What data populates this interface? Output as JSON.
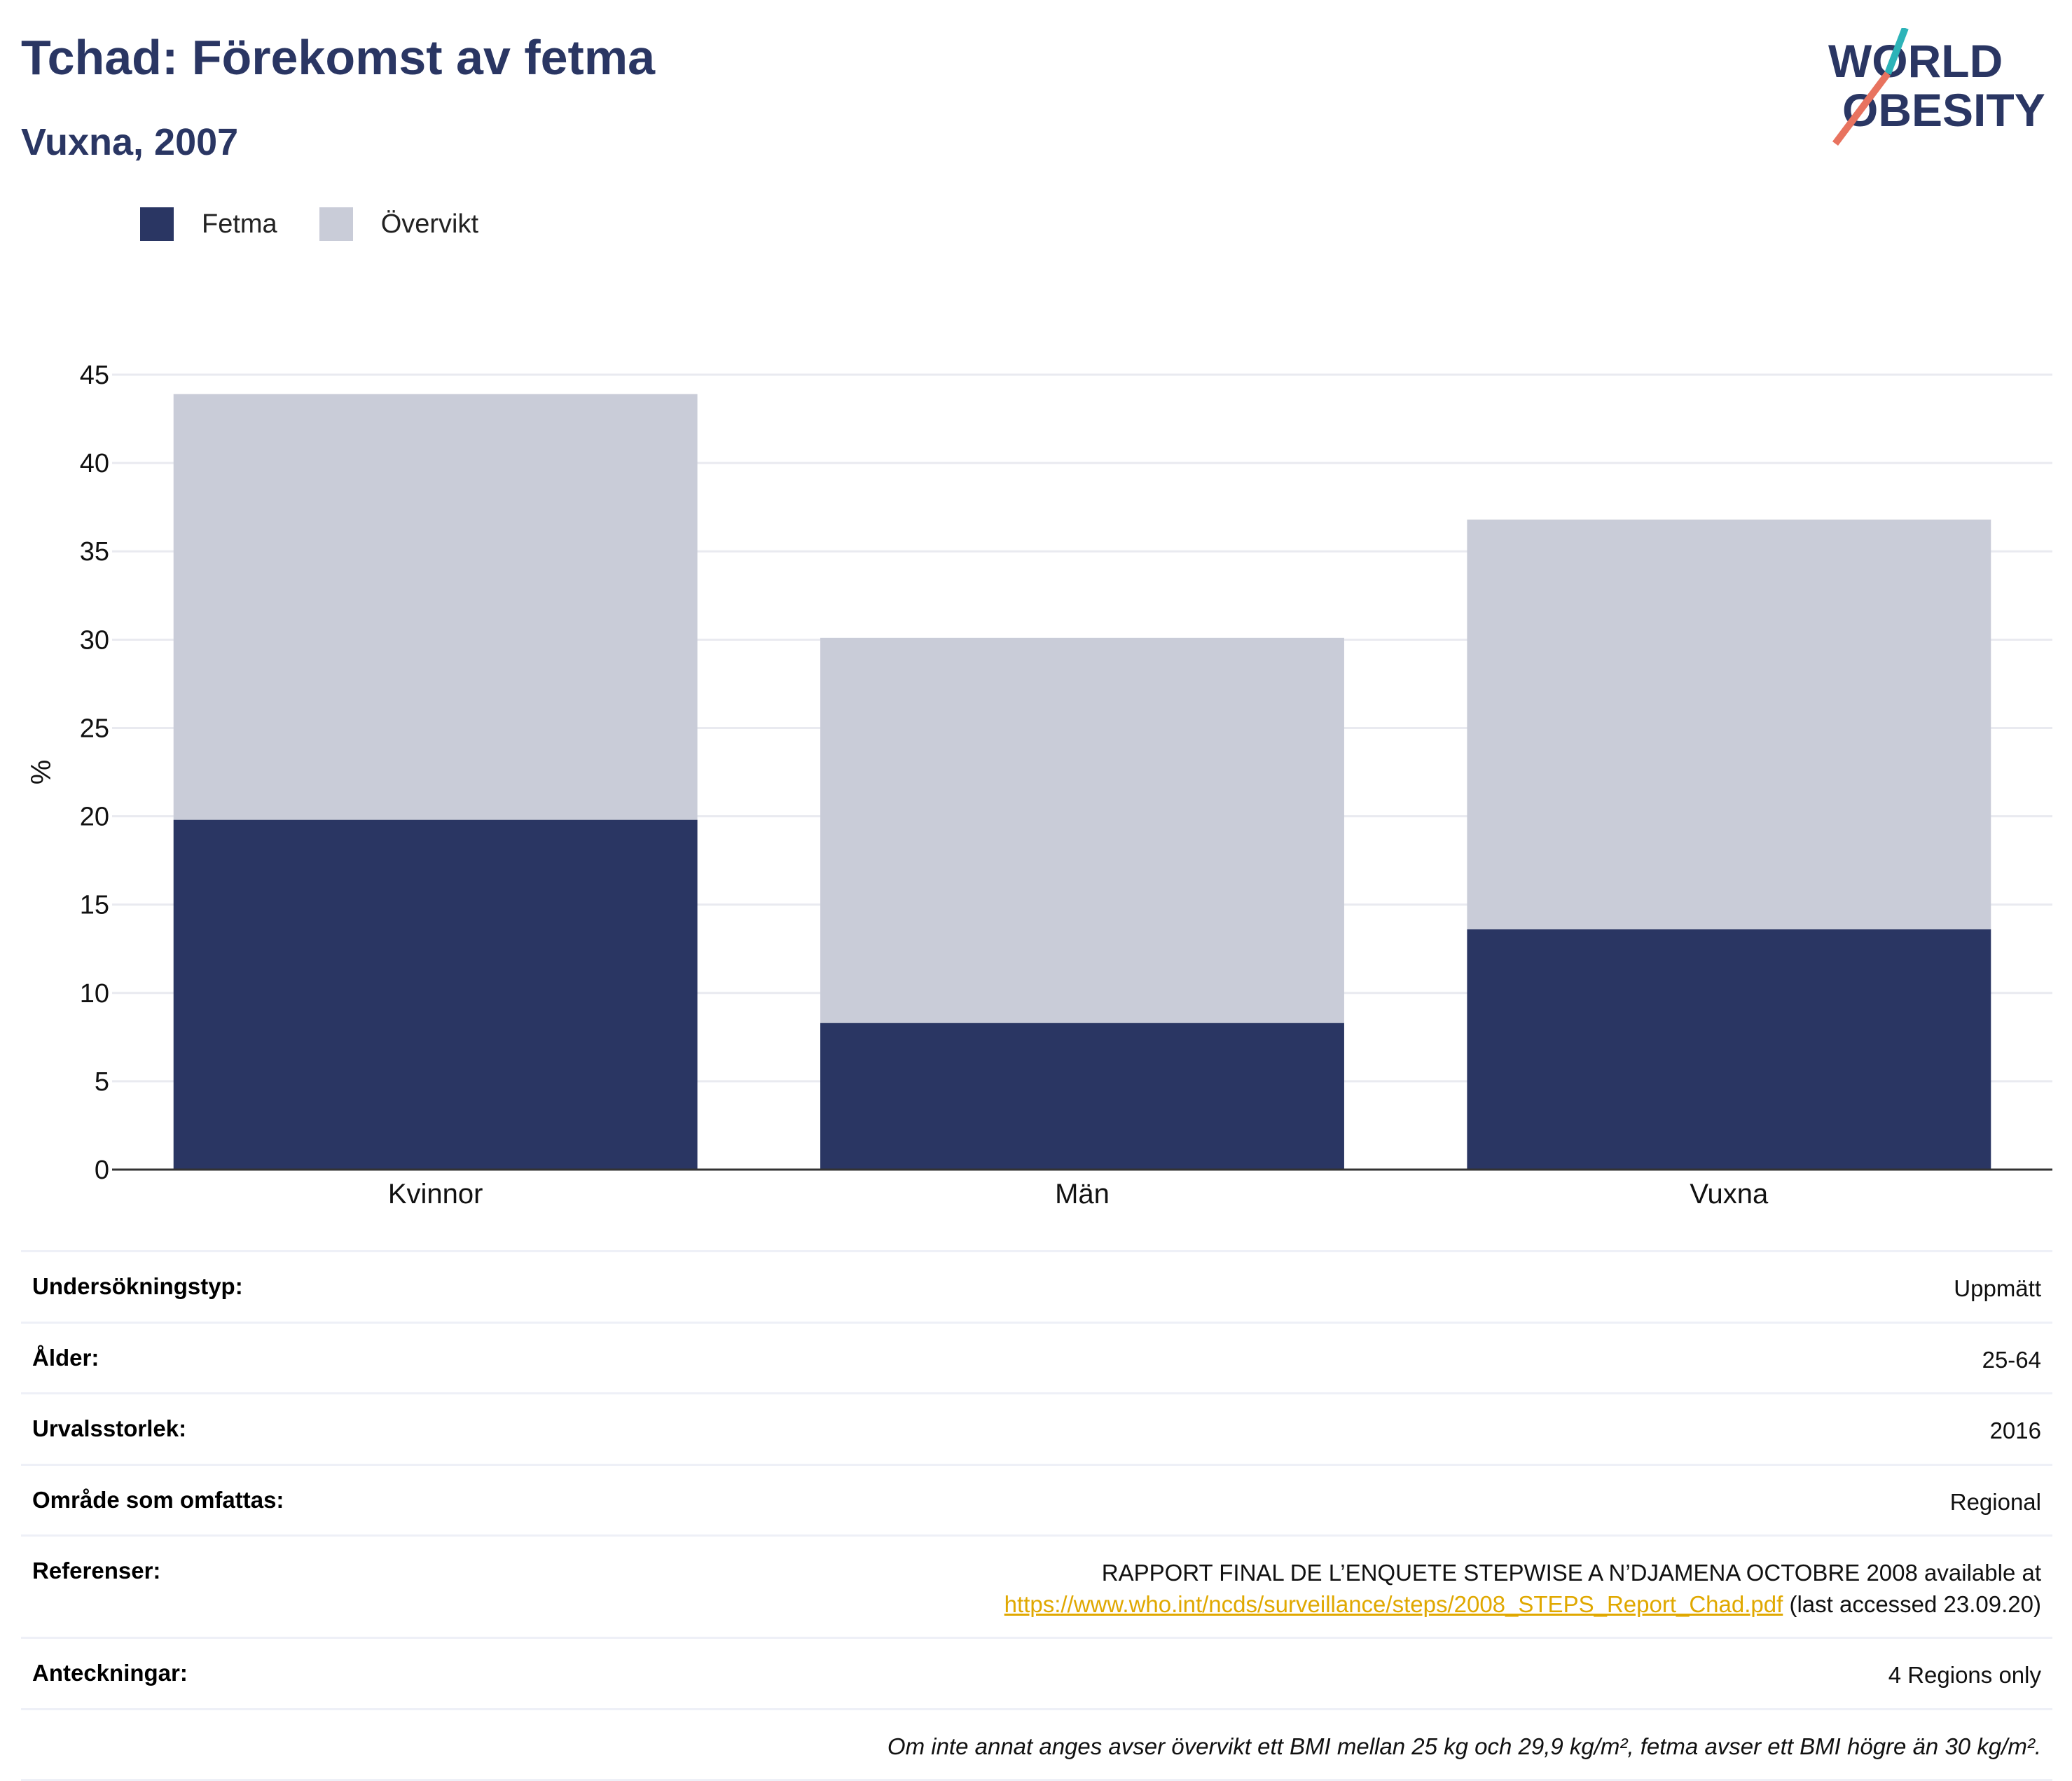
{
  "header": {
    "title": "Tchad: Förekomst av fetma",
    "subtitle": "Vuxna, 2007",
    "logo_line1": "WORLD",
    "logo_line2": "OBESITY"
  },
  "legend": {
    "items": [
      {
        "label": "Fetma",
        "color": "#2a3663"
      },
      {
        "label": "Övervikt",
        "color": "#c9ccd8"
      }
    ]
  },
  "chart_data": {
    "type": "bar",
    "stacked": true,
    "categories": [
      "Kvinnor",
      "Män",
      "Vuxna"
    ],
    "series": [
      {
        "name": "Fetma",
        "values": [
          19.8,
          8.3,
          13.6
        ],
        "color": "#2a3663"
      },
      {
        "name": "Övervikt",
        "values": [
          24.1,
          21.8,
          23.2
        ],
        "color": "#c9ccd8"
      }
    ],
    "ylabel": "%",
    "ylim": [
      0,
      45
    ],
    "yticks": [
      0,
      5,
      10,
      15,
      20,
      25,
      30,
      35,
      40,
      45
    ],
    "grid": true,
    "legend_position": "top-left"
  },
  "info": {
    "rows": [
      {
        "key": "Undersökningstyp:",
        "value": "Uppmätt"
      },
      {
        "key": "Ålder:",
        "value": "25-64"
      },
      {
        "key": "Urvalsstorlek:",
        "value": "2016"
      },
      {
        "key": "Område som omfattas:",
        "value": "Regional"
      }
    ],
    "references": {
      "key": "Referenser:",
      "line1": "RAPPORT FINAL DE L’ENQUETE STEPWISE A N’DJAMENA OCTOBRE 2008 available at",
      "link": "https://www.who.int/ncds/surveillance/steps/2008_STEPS_Report_Chad.pdf",
      "suffix": " (last accessed 23.09.20)"
    },
    "notes": {
      "key": "Anteckningar:",
      "value": "4 Regions only"
    },
    "footnote": "Om inte annat anges avser övervikt ett BMI mellan 25 kg och 29,9 kg/m², fetma avser ett BMI högre än 30 kg/m²."
  }
}
